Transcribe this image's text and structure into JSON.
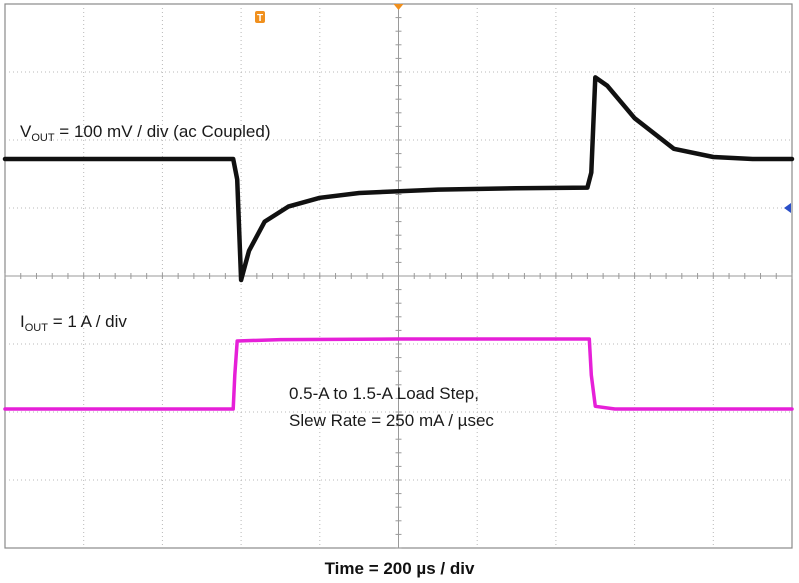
{
  "chart_data": {
    "type": "line",
    "title": "",
    "xlabel": "Time = 200 µs / div",
    "x_unit": "µs",
    "x_range": [
      0,
      2000
    ],
    "grid": true,
    "divisions": {
      "x": 10,
      "y": 8
    },
    "series": [
      {
        "name": "VOUT",
        "channel_label_main": "V",
        "channel_label_sub": "OUT",
        "channel_label_rest": " = 100 mV / div (ac Coupled)",
        "unit": "mV (ac coupled, relative)",
        "color": "#111111",
        "x": [
          0,
          580,
          590,
          600,
          620,
          660,
          720,
          800,
          900,
          1100,
          1300,
          1480,
          1490,
          1500,
          1530,
          1600,
          1700,
          1800,
          1900,
          2000
        ],
        "values": [
          0,
          0,
          -30,
          -178,
          -135,
          -92,
          -70,
          -57,
          -50,
          -45,
          -43,
          -42,
          -20,
          120,
          108,
          60,
          15,
          3,
          0,
          0
        ]
      },
      {
        "name": "IOUT",
        "channel_label_main": "I",
        "channel_label_sub": "OUT",
        "channel_label_rest": " = 1 A / div",
        "unit": "A",
        "color": "#e620d8",
        "x": [
          0,
          580,
          584,
          590,
          700,
          1000,
          1300,
          1485,
          1490,
          1500,
          1550,
          2000
        ],
        "values": [
          0.5,
          0.5,
          1.0,
          1.5,
          1.52,
          1.53,
          1.53,
          1.53,
          1.0,
          0.54,
          0.5,
          0.5
        ]
      }
    ],
    "annotations": [
      "0.5-A to 1.5-A Load Step,",
      "Slew Rate  = 250 mA / µsec"
    ],
    "markers": [
      {
        "name": "trigger-marker",
        "symbol": "T",
        "color": "#f0901e"
      },
      {
        "name": "trigger-level-marker",
        "symbol": "◀",
        "color": "#2a4fc8"
      }
    ]
  }
}
